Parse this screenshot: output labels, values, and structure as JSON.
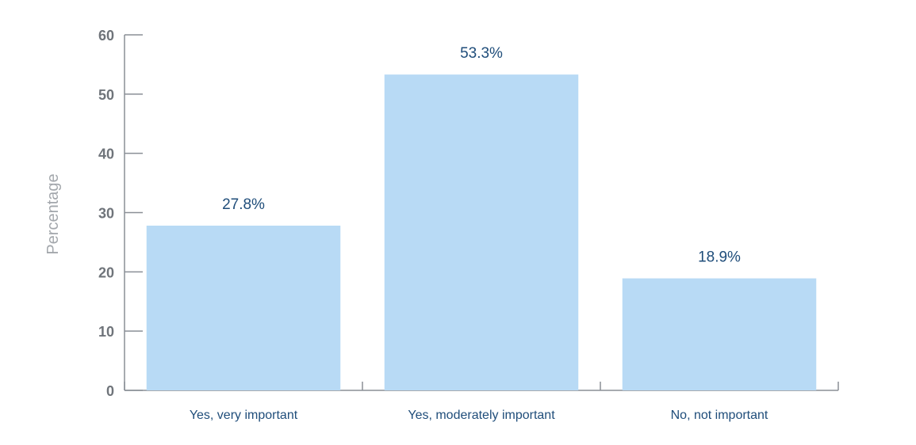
{
  "chart_data": {
    "type": "bar",
    "title": "",
    "xlabel": "",
    "ylabel": "Percentage",
    "categories": [
      "Yes, very important",
      "Yes, moderately important",
      "No, not important"
    ],
    "values": [
      27.8,
      53.3,
      18.9
    ],
    "value_labels": [
      "27.8%",
      "53.3%",
      "18.9%"
    ],
    "ylim": [
      0,
      60
    ],
    "yticks": [
      0,
      10,
      20,
      30,
      40,
      50,
      60
    ],
    "grid": false,
    "colors": {
      "bar": "#b8daf5",
      "axis": "#8a8f96",
      "tick_text": "#6f747a",
      "label_text": "#1f4d7a",
      "ylabel_text": "#a3a7ac"
    }
  }
}
